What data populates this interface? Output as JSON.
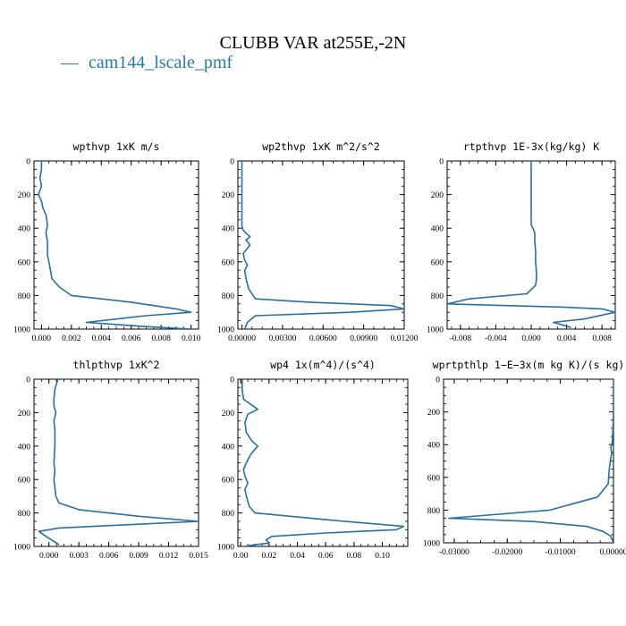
{
  "figure": {
    "title": "CLUBB VAR at255E,-2N",
    "legend": {
      "line": "—",
      "label": "cam144_lscale_pmf",
      "color": "#2a7aa8"
    },
    "line_color": "#2a6fa0"
  },
  "chart_data": [
    {
      "type": "line",
      "title": "wpthvp   1xK m/s",
      "xlim": [
        -0.0005,
        0.0105
      ],
      "ylim": [
        0,
        1000
      ],
      "y_inverted": true,
      "xticks": [
        "0.000",
        "0.002",
        "0.004",
        "0.006",
        "0.008",
        "0.010"
      ],
      "xtick_values": [
        0,
        0.002,
        0.004,
        0.006,
        0.008,
        0.01
      ],
      "yticks": [
        "0",
        "200",
        "400",
        "600",
        "800",
        "1000"
      ],
      "series": [
        {
          "x": [
            0.0,
            0.0,
            -0.0001,
            0.0,
            -0.0002,
            0.0,
            0.0001,
            0.0003,
            0.0004,
            0.0003,
            0.0004,
            0.0004,
            0.0004,
            0.0005,
            0.0006,
            0.0007,
            0.0012,
            0.002,
            0.006,
            0.009,
            0.01,
            0.007,
            0.003,
            0.007,
            0.01
          ],
          "y": [
            0,
            50,
            100,
            150,
            200,
            240,
            280,
            320,
            380,
            430,
            480,
            520,
            560,
            600,
            650,
            700,
            750,
            800,
            840,
            880,
            900,
            920,
            960,
            985,
            1000
          ]
        }
      ]
    },
    {
      "type": "line",
      "title": "wp2thvp   1xK m^2/s^2",
      "xlim": [
        -0.0003,
        0.012
      ],
      "ylim": [
        0,
        1000
      ],
      "y_inverted": true,
      "xticks": [
        "0.00000",
        "0.00300",
        "0.00600",
        "0.00900",
        "0.01200"
      ],
      "xtick_values": [
        0,
        0.003,
        0.006,
        0.009,
        0.012
      ],
      "yticks": [
        "0",
        "200",
        "400",
        "600",
        "800",
        "1000"
      ],
      "series": [
        {
          "x": [
            0.0,
            0.0,
            0.0,
            0.0,
            0.0,
            0.0,
            0.0001,
            0.0003,
            0.0006,
            0.0003,
            0.0006,
            0.0001,
            0.0002,
            0.0004,
            0.0002,
            0.0003,
            0.0005,
            0.001,
            0.005,
            0.011,
            0.012,
            0.008,
            0.001,
            0.0004,
            0.0002
          ],
          "y": [
            0,
            100,
            200,
            300,
            360,
            390,
            410,
            430,
            450,
            470,
            500,
            550,
            590,
            620,
            650,
            700,
            760,
            820,
            840,
            860,
            880,
            900,
            920,
            960,
            1000
          ]
        }
      ]
    },
    {
      "type": "line",
      "title": "rtpthvp   1E-3x(kg/kg) K",
      "xlim": [
        -0.0095,
        0.0095
      ],
      "ylim": [
        0,
        1000
      ],
      "y_inverted": true,
      "xticks": [
        "-0.008",
        "-0.004",
        "0.000",
        "0.004",
        "0.008"
      ],
      "xtick_values": [
        -0.008,
        -0.004,
        0,
        0.004,
        0.008
      ],
      "yticks": [
        "0",
        "200",
        "400",
        "600",
        "800",
        "1000"
      ],
      "series": [
        {
          "x": [
            0.0,
            0.0,
            0.0,
            0.0,
            0.0,
            0.0002,
            0.0004,
            0.0004,
            0.0005,
            0.0005,
            0.0006,
            0.0006,
            0.0005,
            -0.0005,
            -0.007,
            -0.0095,
            0.004,
            0.008,
            0.0095,
            0.006,
            0.0025,
            0.0035,
            0.0045
          ],
          "y": [
            0,
            100,
            200,
            300,
            380,
            400,
            430,
            480,
            540,
            600,
            660,
            700,
            740,
            790,
            820,
            850,
            870,
            880,
            900,
            940,
            960,
            975,
            990
          ]
        }
      ]
    },
    {
      "type": "line",
      "title": "thlpthvp   1xK^2",
      "xlim": [
        -0.0015,
        0.015
      ],
      "ylim": [
        0,
        1000
      ],
      "y_inverted": true,
      "xticks": [
        "0.000",
        "0.003",
        "0.006",
        "0.009",
        "0.012",
        "0.015"
      ],
      "xtick_values": [
        0,
        0.003,
        0.006,
        0.009,
        0.012,
        0.015
      ],
      "yticks": [
        "0",
        "200",
        "400",
        "600",
        "800",
        "1000"
      ],
      "series": [
        {
          "x": [
            0.0009,
            0.0006,
            0.0005,
            0.0005,
            0.0007,
            0.0005,
            0.0006,
            0.0006,
            0.0005,
            0.0006,
            0.0005,
            0.0006,
            0.0007,
            0.001,
            0.003,
            0.009,
            0.015,
            0.008,
            0.001,
            -0.001,
            -0.0003,
            0.0005,
            0.001
          ],
          "y": [
            0,
            60,
            120,
            160,
            200,
            250,
            300,
            400,
            500,
            550,
            600,
            650,
            700,
            740,
            780,
            820,
            850,
            870,
            890,
            910,
            940,
            970,
            990
          ]
        }
      ]
    },
    {
      "type": "line",
      "title": "wp4   1x(m^4)/(s^4)",
      "xlim": [
        -0.002,
        0.118
      ],
      "ylim": [
        0,
        1000
      ],
      "y_inverted": true,
      "xticks": [
        "0.00",
        "0.02",
        "0.04",
        "0.06",
        "0.08",
        "0.10"
      ],
      "xtick_values": [
        0,
        0.02,
        0.04,
        0.06,
        0.08,
        0.1
      ],
      "yticks": [
        "0",
        "200",
        "400",
        "600",
        "800",
        "1000"
      ],
      "series": [
        {
          "x": [
            0.001,
            0.001,
            0.002,
            0.012,
            0.005,
            0.003,
            0.004,
            0.008,
            0.012,
            0.007,
            0.004,
            0.002,
            0.003,
            0.005,
            0.003,
            0.004,
            0.006,
            0.01,
            0.06,
            0.115,
            0.11,
            0.06,
            0.022,
            0.018,
            0.02,
            0.01,
            0.003
          ],
          "y": [
            0,
            60,
            120,
            180,
            210,
            260,
            320,
            370,
            400,
            450,
            500,
            540,
            580,
            620,
            660,
            700,
            760,
            800,
            840,
            880,
            900,
            920,
            940,
            960,
            980,
            990,
            1000
          ]
        }
      ]
    },
    {
      "type": "line",
      "title": "wprtpthlp   1−E−3x(m kg K)/(s kg)",
      "xlim": [
        -0.032,
        0.0
      ],
      "ylim": [
        0,
        1000
      ],
      "y_inverted": true,
      "xticks": [
        "-0.03000",
        "-0.02000",
        "-0.01000",
        "0.00000"
      ],
      "xtick_values": [
        -0.03,
        -0.02,
        -0.01,
        0.0
      ],
      "yticks": [
        "0",
        "200",
        "400",
        "600",
        "800",
        "1000"
      ],
      "series": [
        {
          "x": [
            0.0,
            0.0,
            0.0,
            -0.0001,
            -0.0002,
            -0.0005,
            -0.0003,
            -0.0005,
            -0.0008,
            -0.001,
            -0.003,
            -0.012,
            -0.031,
            -0.015,
            -0.005,
            -0.002,
            -0.0005,
            0.0
          ],
          "y": [
            0,
            100,
            200,
            300,
            380,
            420,
            450,
            480,
            550,
            640,
            720,
            800,
            850,
            870,
            900,
            930,
            960,
            1000
          ]
        }
      ]
    }
  ]
}
